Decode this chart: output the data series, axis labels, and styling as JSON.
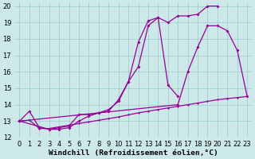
{
  "background_color": "#cce8e8",
  "grid_color": "#99cccc",
  "line_color": "#990099",
  "xlabel": "Windchill (Refroidissement éolien,°C)",
  "xlim": [
    -0.5,
    23.5
  ],
  "ylim": [
    12,
    20.2
  ],
  "xticks": [
    0,
    1,
    2,
    3,
    4,
    5,
    6,
    7,
    8,
    9,
    10,
    11,
    12,
    13,
    14,
    15,
    16,
    17,
    18,
    19,
    20,
    21,
    22,
    23
  ],
  "yticks": [
    12,
    13,
    14,
    15,
    16,
    17,
    18,
    19,
    20
  ],
  "curve_wiggly_x": [
    0,
    1,
    2,
    3,
    4,
    5,
    6,
    7,
    8,
    9,
    10,
    11,
    12,
    13,
    14,
    15,
    16,
    17,
    18,
    19,
    20
  ],
  "curve_wiggly_y": [
    13.0,
    13.6,
    12.6,
    12.5,
    12.6,
    12.7,
    13.4,
    13.4,
    13.5,
    13.6,
    14.3,
    15.4,
    17.8,
    19.1,
    19.3,
    19.0,
    19.4,
    19.4,
    19.5,
    20.0,
    20.0
  ],
  "curve_peak_x": [
    0,
    3,
    4,
    5,
    6,
    7,
    8,
    9,
    10,
    11,
    12,
    13,
    14,
    15,
    16
  ],
  "curve_peak_y": [
    13.0,
    12.5,
    12.5,
    12.6,
    13.0,
    13.3,
    13.5,
    13.7,
    14.2,
    15.4,
    16.3,
    18.8,
    19.3,
    15.2,
    14.5
  ],
  "curve_diag_x": [
    0,
    16,
    17,
    18,
    19,
    20,
    21,
    22,
    23
  ],
  "curve_diag_y": [
    13.0,
    14.0,
    16.0,
    17.5,
    18.8,
    18.8,
    18.5,
    17.3,
    14.5
  ],
  "curve_flat_x": [
    0,
    1,
    2,
    3,
    4,
    5,
    6,
    7,
    8,
    9,
    10,
    11,
    12,
    13,
    14,
    15,
    16,
    17,
    18,
    19,
    20,
    21,
    22,
    23
  ],
  "curve_flat_y": [
    13.0,
    13.05,
    12.55,
    12.55,
    12.65,
    12.75,
    12.85,
    12.95,
    13.05,
    13.15,
    13.25,
    13.38,
    13.5,
    13.6,
    13.7,
    13.8,
    13.9,
    14.0,
    14.1,
    14.2,
    14.3,
    14.37,
    14.43,
    14.5
  ]
}
